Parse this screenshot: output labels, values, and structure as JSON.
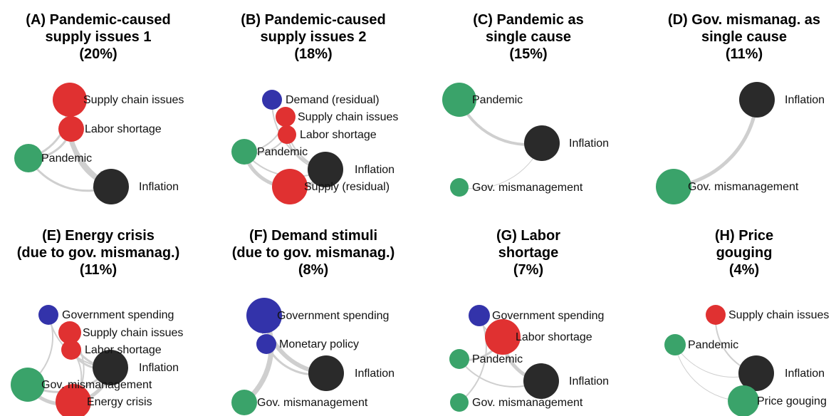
{
  "panels": [
    {
      "title_lines": [
        "(A) Pandemic-caused",
        "supply issues 1"
      ],
      "share": "(20%)",
      "nodes": [
        "Supply chain issues",
        "Labor shortage",
        "Pandemic",
        "Inflation"
      ]
    },
    {
      "title_lines": [
        "(B) Pandemic-caused",
        "supply issues 2"
      ],
      "share": "(18%)",
      "nodes": [
        "Demand (residual)",
        "Supply chain issues",
        "Labor shortage",
        "Pandemic",
        "Inflation",
        "Supply (residual)"
      ]
    },
    {
      "title_lines": [
        "(C) Pandemic as",
        "single cause"
      ],
      "share": "(15%)",
      "nodes": [
        "Pandemic",
        "Inflation",
        "Gov. mismanagement"
      ]
    },
    {
      "title_lines": [
        "(D) Gov. mismanag. as",
        "single cause"
      ],
      "share": "(11%)",
      "nodes": [
        "Inflation",
        "Gov. mismanagement"
      ]
    },
    {
      "title_lines": [
        "(E) Energy crisis",
        "(due to gov. mismanag.)"
      ],
      "share": "(11%)",
      "nodes": [
        "Government spending",
        "Supply chain issues",
        "Labor shortage",
        "Inflation",
        "Gov. mismanagement",
        "Energy crisis"
      ]
    },
    {
      "title_lines": [
        "(F) Demand stimuli",
        "(due to gov. mismanag.)"
      ],
      "share": "(8%)",
      "nodes": [
        "Government spending",
        "Monetary policy",
        "Inflation",
        "Gov. mismanagement"
      ]
    },
    {
      "title_lines": [
        "(G) Labor",
        "shortage"
      ],
      "share": "(7%)",
      "nodes": [
        "Government spending",
        "Labor shortage",
        "Pandemic",
        "Inflation",
        "Gov. mismanagement"
      ]
    },
    {
      "title_lines": [
        "(H) Price",
        "gouging"
      ],
      "share": "(4%)",
      "nodes": [
        "Supply chain issues",
        "Pandemic",
        "Inflation",
        "Price gouging"
      ]
    }
  ]
}
